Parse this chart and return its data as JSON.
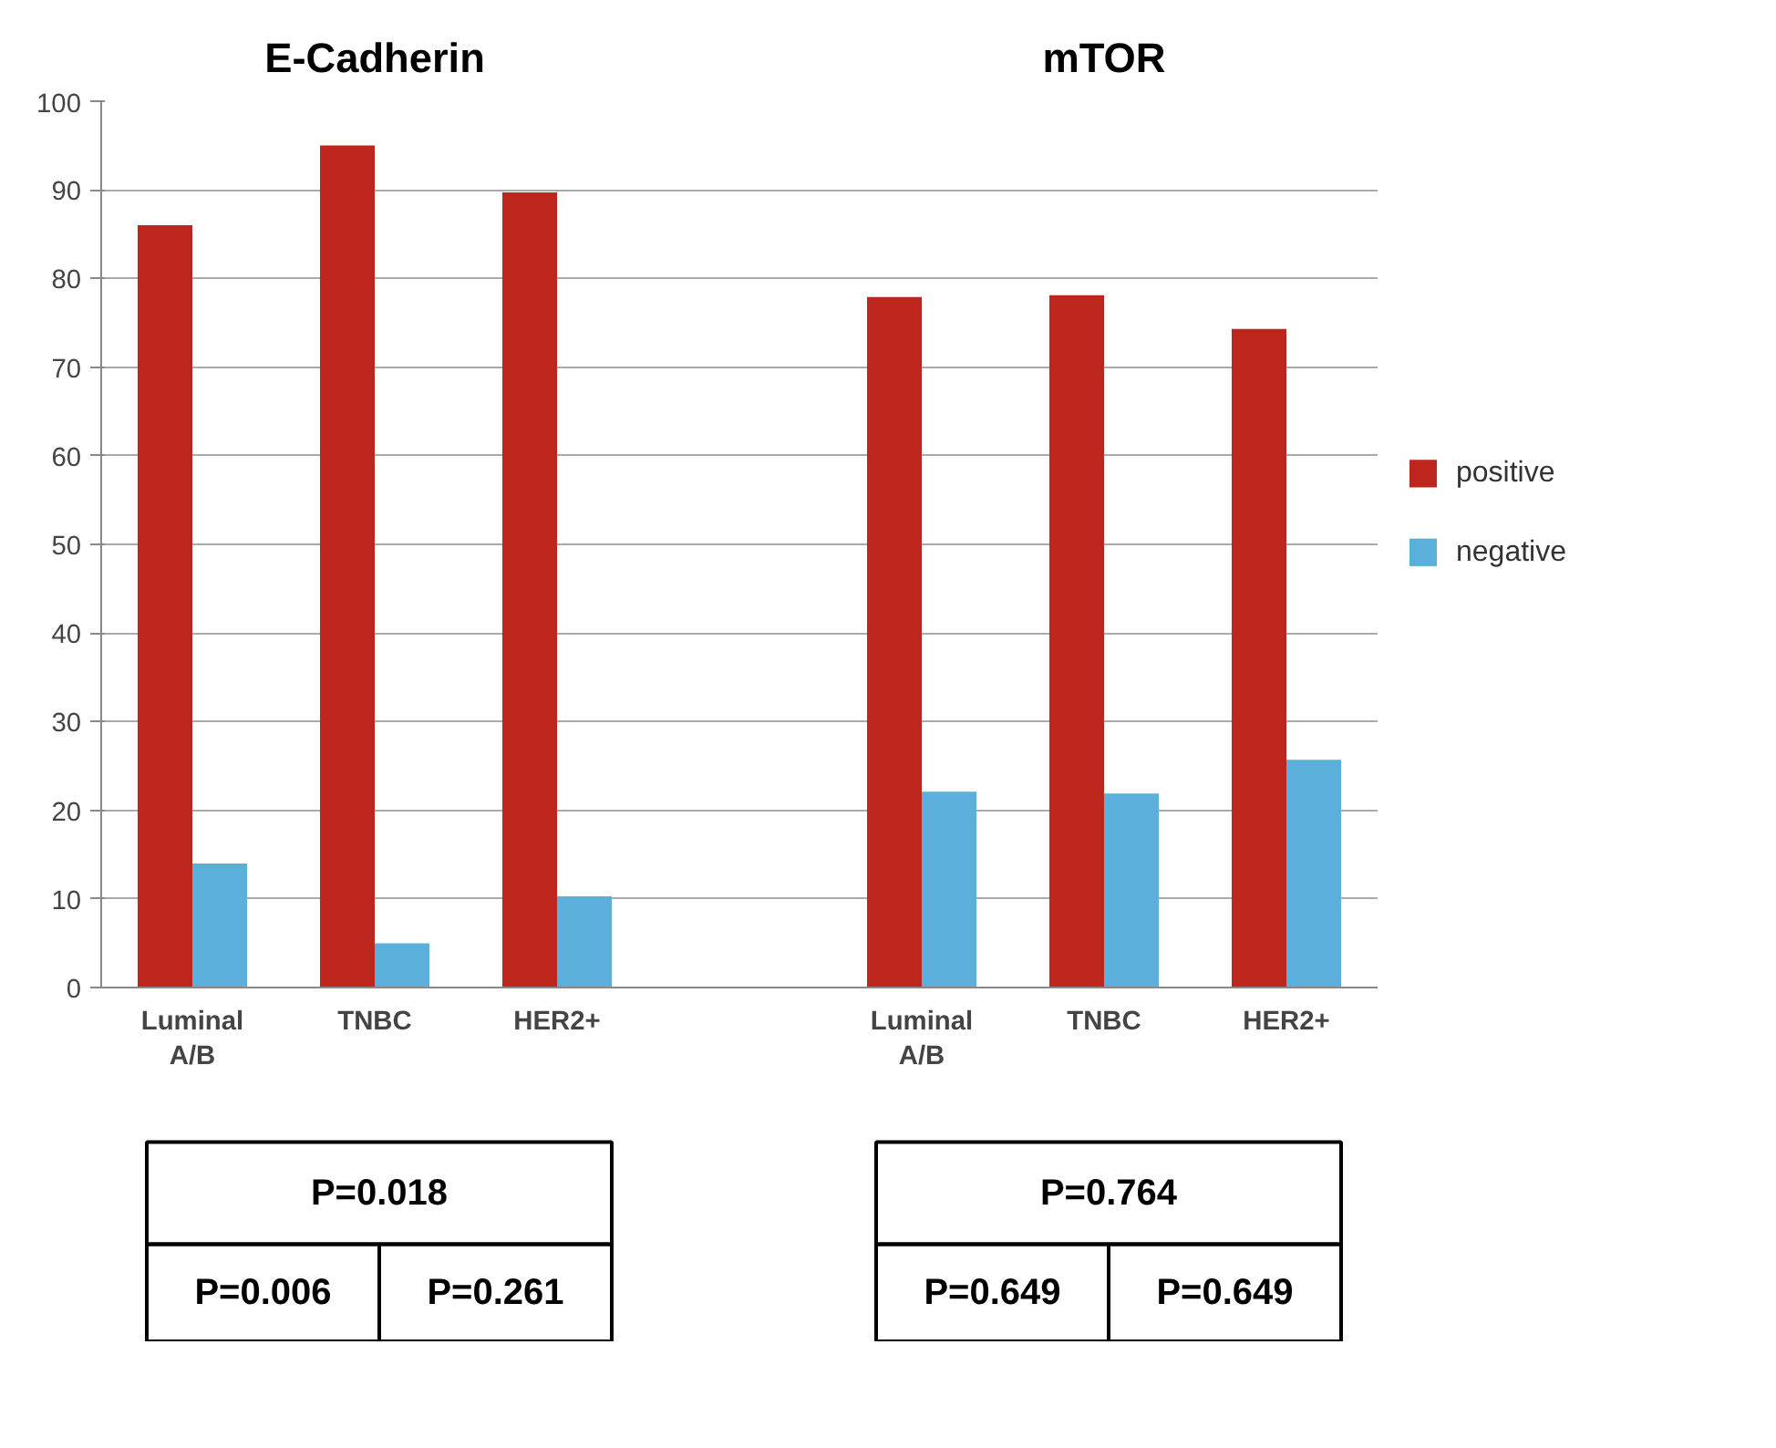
{
  "chart_data": {
    "type": "bar",
    "categories": [
      "Luminal A/B",
      "TNBC",
      "HER2+",
      null,
      "Luminal A/B",
      "TNBC",
      "HER2+"
    ],
    "series": [
      {
        "name": "positive",
        "color": "#bd261d",
        "values": [
          86,
          95,
          89.7,
          null,
          77.9,
          78.1,
          74.3
        ]
      },
      {
        "name": "negative",
        "color": "#5ab0da",
        "values": [
          14,
          5,
          10.3,
          null,
          22.1,
          21.9,
          25.7
        ]
      }
    ],
    "ylim": [
      0,
      100
    ],
    "yticks": [
      0,
      10,
      20,
      30,
      40,
      50,
      60,
      70,
      80,
      90,
      100
    ],
    "grid": "y",
    "legend": "right",
    "annotations": [
      "E-Cadherin",
      "mTOR",
      "P=0.018",
      "P=0.006",
      "P=0.261",
      "P=0.764",
      "P=0.649",
      "P=0.649"
    ]
  }
}
